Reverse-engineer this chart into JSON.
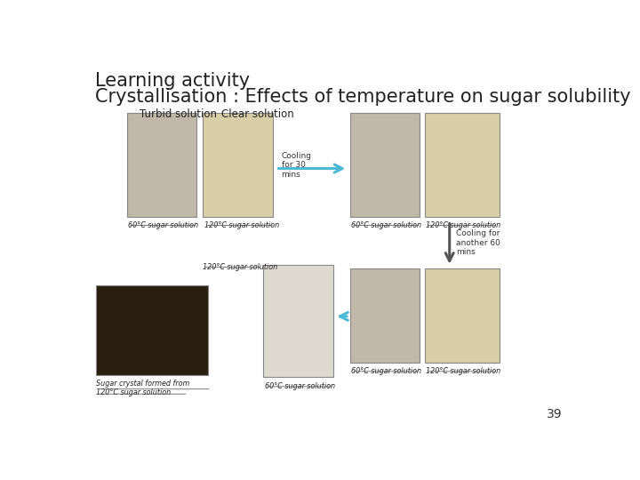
{
  "title_line1": "Learning activity",
  "title_line2": "Crystallisation : Effects of temperature on sugar solubility",
  "title_fontsize": 15,
  "title_color": "#222222",
  "bg_color": "#ffffff",
  "label_turbid": "Turbid solution",
  "label_clear": "Clear solution",
  "label_cooling30": "Cooling\nfor 30\nmins",
  "label_cooling60": "Cooling for\nanother 60\nmins",
  "label_60C": "60°C sugar solution",
  "label_120C": "120°C sugar solution",
  "label_crystal": "Sugar crystal formed from\n120°C sugar solution",
  "page_number": "39",
  "text_color": "#222222",
  "arrow_color_blue": "#4db8d4",
  "arrow_color_dark": "#555555"
}
